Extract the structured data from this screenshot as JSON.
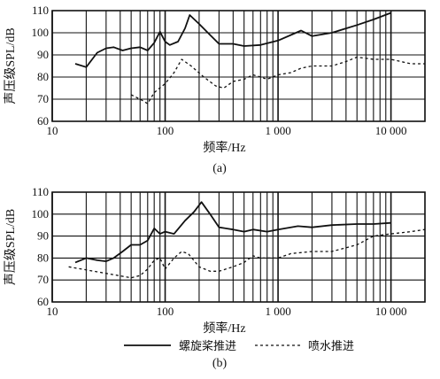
{
  "figure": {
    "xlabel": "频率/Hz",
    "ylabel": "声压级SPL/dB",
    "captions": [
      "(a)",
      "(b)"
    ],
    "legend": [
      {
        "label": "螺旋桨推进",
        "style": "solid"
      },
      {
        "label": "喷水推进",
        "style": "dashed"
      }
    ]
  },
  "chart_data": [
    {
      "type": "line",
      "title": "",
      "xlabel": "频率/Hz",
      "ylabel": "声压级SPL/dB",
      "xscale": "log",
      "xlim": [
        10,
        20000
      ],
      "ylim": [
        60,
        110
      ],
      "grid": true,
      "xticks": [
        10,
        100,
        1000,
        10000
      ],
      "xtick_labels": [
        "10",
        "100",
        "1 000",
        "10 000"
      ],
      "yticks": [
        60,
        70,
        80,
        90,
        100,
        110
      ],
      "yvisible_labels": [
        "60",
        "70",
        "80",
        "90",
        "100",
        "110"
      ],
      "caption": "(a)",
      "series": [
        {
          "name": "螺旋桨推进",
          "style": "solid",
          "x": [
            16,
            20,
            25,
            30,
            35,
            42,
            50,
            60,
            70,
            80,
            90,
            100,
            110,
            130,
            150,
            165,
            200,
            250,
            300,
            400,
            500,
            700,
            1000,
            1300,
            1600,
            2000,
            3000,
            5000,
            7000,
            10000
          ],
          "y": [
            86,
            84.5,
            91,
            93,
            93.5,
            92,
            93,
            93.5,
            92,
            95.5,
            100.5,
            96,
            94.5,
            96,
            102,
            108,
            104,
            99,
            95,
            95,
            94,
            94.5,
            96.5,
            99,
            101,
            98.5,
            100,
            103.5,
            106,
            109
          ]
        },
        {
          "name": "喷水推进",
          "style": "dashed",
          "x": [
            50,
            60,
            70,
            80,
            100,
            120,
            140,
            170,
            220,
            280,
            330,
            400,
            500,
            600,
            700,
            800,
            1000,
            1300,
            1600,
            2000,
            3000,
            4000,
            5000,
            7000,
            10000,
            15000,
            20000
          ],
          "y": [
            72,
            70,
            68,
            73,
            77,
            82,
            88,
            85,
            80,
            76,
            75,
            78,
            79,
            81,
            80,
            79,
            81,
            82,
            84,
            85,
            85,
            87,
            89,
            88,
            88,
            86,
            86
          ]
        }
      ]
    },
    {
      "type": "line",
      "title": "",
      "xlabel": "频率/Hz",
      "ylabel": "声压级SPL/dB",
      "xscale": "log",
      "xlim": [
        10,
        20000
      ],
      "ylim": [
        60,
        110
      ],
      "grid": true,
      "xticks": [
        10,
        100,
        1000,
        10000
      ],
      "xtick_labels": [
        "10",
        "100",
        "1 000",
        "10 000"
      ],
      "yticks": [
        60,
        70,
        80,
        90,
        100,
        110
      ],
      "yvisible_labels": [
        "60",
        "70",
        "80",
        "90",
        "100",
        "110"
      ],
      "caption": "(b)",
      "series": [
        {
          "name": "螺旋桨推进",
          "style": "solid",
          "x": [
            16,
            20,
            25,
            30,
            35,
            42,
            50,
            60,
            70,
            80,
            90,
            100,
            120,
            150,
            180,
            210,
            250,
            300,
            400,
            500,
            600,
            800,
            1000,
            1500,
            2000,
            3000,
            5000,
            7000,
            10000
          ],
          "y": [
            78,
            80,
            79,
            78.5,
            80,
            83,
            86,
            86,
            88,
            93.5,
            91,
            92,
            91,
            97,
            101,
            105.5,
            100,
            94,
            93,
            92,
            93,
            92,
            93,
            94.5,
            94,
            95,
            95.5,
            95.5,
            96
          ]
        },
        {
          "name": "喷水推进",
          "style": "dashed",
          "x": [
            14,
            50,
            60,
            70,
            80,
            90,
            100,
            120,
            140,
            160,
            200,
            250,
            300,
            400,
            500,
            600,
            700,
            1000,
            1300,
            2000,
            3000,
            5000,
            7000,
            10000,
            15000,
            20000
          ],
          "y": [
            76,
            71,
            72,
            75,
            79,
            80,
            75,
            80,
            83,
            82,
            76,
            74,
            74,
            76,
            78,
            81,
            80,
            80,
            82,
            83,
            83,
            86,
            90,
            91,
            92,
            93
          ]
        }
      ]
    }
  ]
}
